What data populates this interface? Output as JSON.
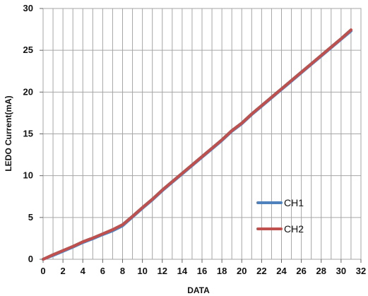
{
  "chart_data": {
    "type": "line",
    "title": "",
    "xlabel": "DATA",
    "ylabel": "LEDO Current(mA)",
    "xlim": [
      0,
      32
    ],
    "ylim": [
      0,
      30
    ],
    "x_ticks": [
      "0",
      "2",
      "4",
      "6",
      "8",
      "10",
      "12",
      "14",
      "16",
      "18",
      "20",
      "22",
      "24",
      "26",
      "28",
      "30",
      "32"
    ],
    "y_ticks": [
      "0",
      "5",
      "10",
      "15",
      "20",
      "25",
      "30"
    ],
    "x_tick_values": [
      0,
      2,
      4,
      6,
      8,
      10,
      12,
      14,
      16,
      18,
      20,
      22,
      24,
      26,
      28,
      30,
      32
    ],
    "y_tick_values": [
      0,
      5,
      10,
      15,
      20,
      25,
      30
    ],
    "x_grid_values": [
      0,
      1,
      2,
      3,
      4,
      5,
      6,
      7,
      8,
      9,
      10,
      11,
      12,
      13,
      14,
      15,
      16,
      17,
      18,
      19,
      20,
      21,
      22,
      23,
      24,
      25,
      26,
      27,
      28,
      29,
      30,
      31,
      32
    ],
    "grid": true,
    "legend_position": "right",
    "x": [
      0,
      1,
      2,
      3,
      4,
      5,
      6,
      7,
      8,
      9,
      10,
      11,
      12,
      13,
      14,
      15,
      16,
      17,
      18,
      19,
      20,
      21,
      22,
      23,
      24,
      25,
      26,
      27,
      28,
      29,
      30,
      31
    ],
    "series": [
      {
        "name": "CH1",
        "color": "#4f81bd",
        "values": [
          0,
          0.45,
          0.95,
          1.45,
          2.0,
          2.45,
          2.95,
          3.4,
          4.0,
          5.05,
          6.1,
          7.1,
          8.2,
          9.2,
          10.2,
          11.2,
          12.2,
          13.2,
          14.2,
          15.3,
          16.2,
          17.3,
          18.3,
          19.3,
          20.3,
          21.3,
          22.3,
          23.3,
          24.3,
          25.3,
          26.3,
          27.3
        ]
      },
      {
        "name": "CH2",
        "color": "#c0504d",
        "values": [
          0,
          0.55,
          1.05,
          1.55,
          2.1,
          2.55,
          3.05,
          3.55,
          4.15,
          5.15,
          6.2,
          7.2,
          8.3,
          9.3,
          10.3,
          11.3,
          12.3,
          13.3,
          14.3,
          15.4,
          16.3,
          17.4,
          18.4,
          19.4,
          20.4,
          21.4,
          22.4,
          23.4,
          24.4,
          25.4,
          26.4,
          27.45
        ]
      }
    ]
  }
}
